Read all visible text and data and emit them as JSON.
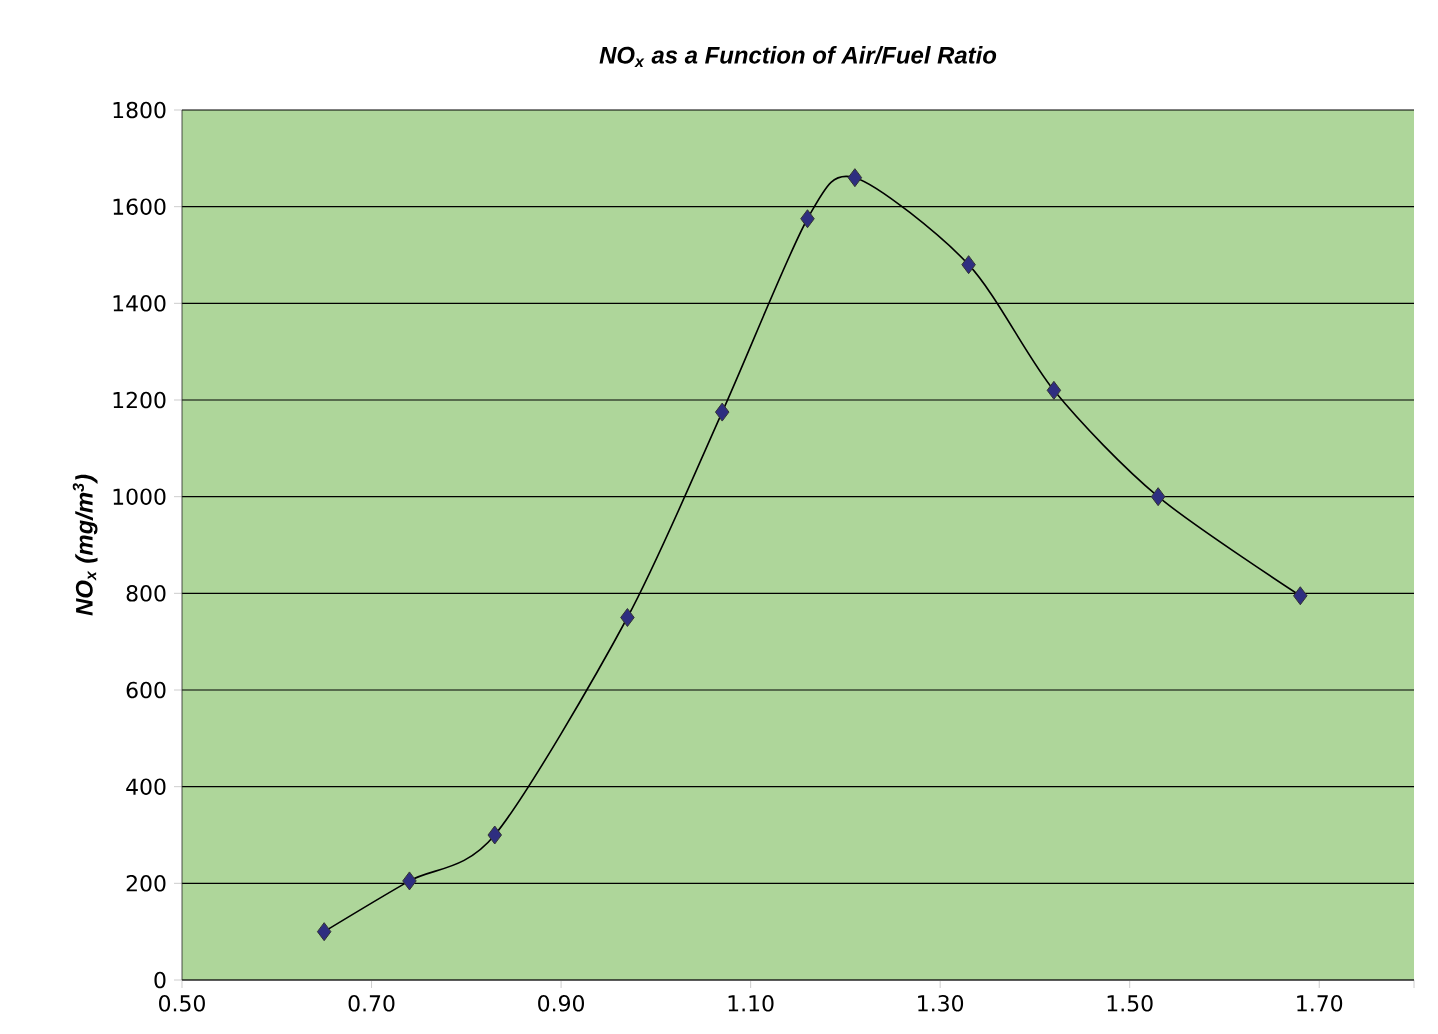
{
  "chart_data": {
    "type": "line",
    "title": "NO$_{x}$ as a Function of Air/Fuel Ratio",
    "ylabel": "NO$_{x}$ (mg/m$^{3}$)",
    "x": [
      0.65,
      0.74,
      0.83,
      0.97,
      1.07,
      1.16,
      1.21,
      1.33,
      1.42,
      1.53,
      1.68
    ],
    "series": [
      {
        "color": "#2e2e80",
        "values": [
          100,
          205,
          300,
          750,
          1175,
          1575,
          1660,
          1480,
          1220,
          1000,
          795
        ]
      }
    ],
    "xlim": [
      0.5,
      1.8
    ],
    "xticks": [
      {
        "value": 0.5,
        "label": "0.50"
      },
      {
        "value": 0.7,
        "label": "0.70"
      },
      {
        "value": 0.9,
        "label": "0.90"
      },
      {
        "value": 1.1,
        "label": "1.10"
      },
      {
        "value": 1.3,
        "label": "1.30"
      },
      {
        "value": 1.5,
        "label": "1.50"
      },
      {
        "value": 1.7,
        "label": "1.70"
      },
      {
        "value": 1.8,
        "label": null
      }
    ],
    "ylim": [
      0,
      1800
    ],
    "yticks": [
      0,
      200,
      400,
      600,
      800,
      1000,
      1200,
      1400,
      1600,
      1800
    ],
    "grid": "y",
    "marker": "diamond"
  }
}
